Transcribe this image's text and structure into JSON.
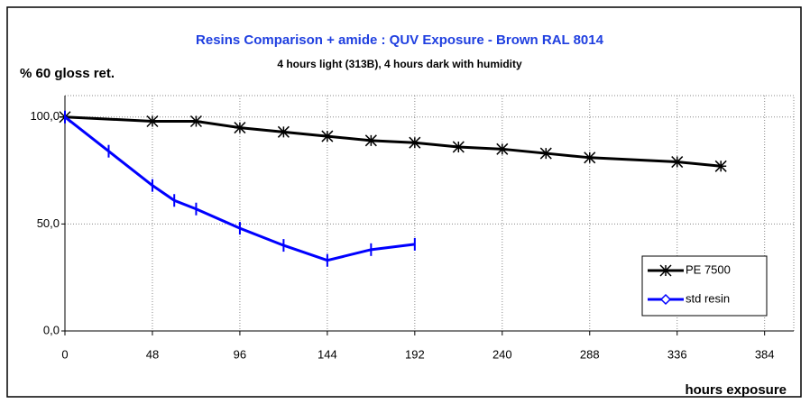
{
  "chart_data": {
    "type": "line",
    "title": "Resins Comparison + amide : QUV Exposure - Brown RAL 8014",
    "subtitle": "4 hours light (313B), 4 hours dark with humidity",
    "y_label": "% 60 gloss ret.",
    "x_label": "hours exposure",
    "xlim": [
      0,
      400
    ],
    "xticks": [
      0,
      48,
      96,
      144,
      192,
      240,
      288,
      336,
      384
    ],
    "ylim": [
      0,
      110
    ],
    "yticks": [
      {
        "value": 0,
        "label": "0,0"
      },
      {
        "value": 50,
        "label": "50,0"
      },
      {
        "value": 100,
        "label": "100,0"
      }
    ],
    "grid": true,
    "legend": "lower right",
    "series": [
      {
        "name": "PE 7500",
        "color": "#000000",
        "marker": "star",
        "x": [
          0,
          48,
          72,
          96,
          120,
          144,
          168,
          192,
          216,
          240,
          264,
          288,
          336,
          360
        ],
        "values": [
          100,
          98,
          98,
          95,
          93,
          91,
          89,
          88,
          86,
          85,
          83,
          81,
          79,
          77
        ]
      },
      {
        "name": "std resin",
        "color": "#0000ff",
        "marker": "diamond",
        "x": [
          0,
          24,
          48,
          60,
          72,
          96,
          120,
          144,
          168,
          192
        ],
        "values": [
          100,
          84,
          68,
          61,
          57,
          48,
          40,
          33,
          38,
          40.5
        ]
      }
    ]
  }
}
